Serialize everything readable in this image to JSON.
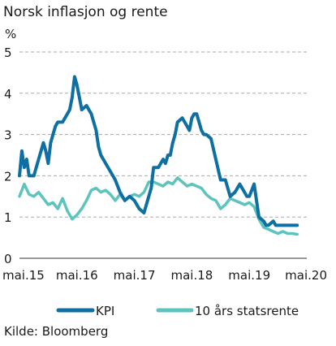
{
  "colors": {
    "kpi": "#0e6fa3",
    "rente": "#5cc4bd",
    "grid": "#aaaaaa",
    "text": "#1a1a1a"
  },
  "chart_data": {
    "type": "line",
    "title": "Norsk inflasjon og rente",
    "unit": "%",
    "source": "Kilde: Bloomberg",
    "ylim": [
      0,
      5
    ],
    "yticks": [
      "0",
      "1",
      "2",
      "3",
      "4",
      "5"
    ],
    "xlim": [
      0,
      60
    ],
    "xticks": [
      {
        "label": "mai.15",
        "x": 0
      },
      {
        "label": "mai.16",
        "x": 12
      },
      {
        "label": "mai.17",
        "x": 24
      },
      {
        "label": "mai.18",
        "x": 36
      },
      {
        "label": "mai.19",
        "x": 48
      },
      {
        "label": "mai.20",
        "x": 60
      }
    ],
    "grid": "horizontal dashed",
    "legend_position": "bottom",
    "series": [
      {
        "name": "KPI",
        "color": "#0e6fa3",
        "x": [
          0,
          0.5,
          1,
          1.5,
          2,
          3,
          4,
          5,
          5.5,
          6,
          6.5,
          7,
          7.5,
          8,
          9,
          10,
          10.5,
          11,
          11.5,
          12,
          12.5,
          13,
          14,
          14.5,
          15,
          16,
          16.5,
          17,
          18,
          19,
          19.5,
          20,
          21,
          22,
          23,
          24,
          25,
          26,
          27,
          27.5,
          28,
          28.5,
          29,
          30,
          30.5,
          31,
          31.5,
          32,
          32.5,
          33,
          34,
          35,
          35.5,
          36,
          36.5,
          37,
          37.5,
          38,
          38.5,
          39,
          40,
          41,
          42,
          43,
          44,
          45,
          46,
          47,
          47.5,
          48,
          49,
          50,
          51,
          51.5,
          52,
          53,
          53.5,
          54,
          54.5,
          55,
          55.5,
          56,
          56.5,
          57,
          57.5,
          58
        ],
        "values": [
          2.0,
          2.6,
          2.2,
          2.4,
          2.0,
          2.0,
          2.4,
          2.8,
          2.6,
          2.3,
          2.8,
          3.0,
          3.2,
          3.3,
          3.3,
          3.5,
          3.6,
          3.9,
          4.4,
          4.2,
          3.9,
          3.6,
          3.7,
          3.6,
          3.5,
          3.1,
          2.7,
          2.5,
          2.3,
          2.1,
          2.0,
          1.9,
          1.6,
          1.4,
          1.5,
          1.4,
          1.2,
          1.1,
          1.5,
          1.7,
          2.2,
          2.2,
          2.2,
          2.4,
          2.3,
          2.5,
          2.5,
          2.8,
          3.0,
          3.3,
          3.4,
          3.2,
          3.1,
          3.4,
          3.5,
          3.5,
          3.3,
          3.1,
          3.0,
          3.0,
          2.9,
          2.4,
          1.9,
          1.9,
          1.5,
          1.6,
          1.8,
          1.6,
          1.5,
          1.5,
          1.8,
          1.0,
          0.9,
          0.8,
          0.8,
          0.9,
          0.8,
          0.8,
          0.8,
          0.8,
          0.8,
          0.8,
          0.8,
          0.8,
          0.8,
          0.8
        ]
      },
      {
        "name": "10 års statsrente",
        "color": "#5cc4bd",
        "x": [
          0,
          1,
          2,
          3,
          4,
          5,
          6,
          7,
          8,
          9,
          10,
          11,
          12,
          13,
          14,
          15,
          16,
          17,
          18,
          19,
          20,
          21,
          22,
          23,
          24,
          25,
          26,
          27,
          28,
          29,
          30,
          31,
          32,
          33,
          34,
          35,
          36,
          37,
          38,
          39,
          40,
          41,
          42,
          43,
          44,
          45,
          46,
          47,
          48,
          49,
          50,
          51,
          52,
          53,
          54,
          55,
          56,
          57,
          58
        ],
        "values": [
          1.5,
          1.8,
          1.55,
          1.5,
          1.6,
          1.45,
          1.3,
          1.35,
          1.2,
          1.45,
          1.15,
          0.95,
          1.05,
          1.2,
          1.4,
          1.65,
          1.7,
          1.6,
          1.65,
          1.55,
          1.4,
          1.55,
          1.4,
          1.5,
          1.55,
          1.5,
          1.6,
          1.85,
          1.85,
          1.8,
          1.75,
          1.85,
          1.8,
          1.95,
          1.85,
          1.75,
          1.8,
          1.75,
          1.7,
          1.55,
          1.45,
          1.4,
          1.2,
          1.3,
          1.45,
          1.4,
          1.35,
          1.3,
          1.35,
          1.25,
          0.95,
          0.75,
          0.7,
          0.65,
          0.6,
          0.65,
          0.6,
          0.6,
          0.58
        ]
      }
    ]
  }
}
